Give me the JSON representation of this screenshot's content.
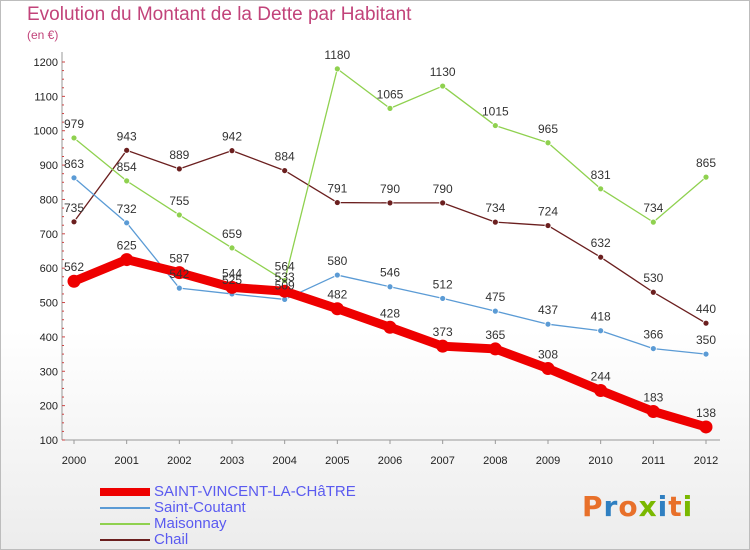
{
  "title": "Evolution du Montant de la Dette par Habitant",
  "subtitle": "(en €)",
  "logo": {
    "text": "Proxiti",
    "colors": [
      "#e8702a",
      "#2f7fc1",
      "#e8702a",
      "#7ab800",
      "#2f7fc1",
      "#e8702a",
      "#7ab800"
    ]
  },
  "chart_data": {
    "type": "line",
    "title": "Evolution du Montant de la Dette par Habitant",
    "ylabel": "(en €)",
    "xlabel": "",
    "x": [
      "2000",
      "2001",
      "2002",
      "2003",
      "2004",
      "2005",
      "2006",
      "2007",
      "2008",
      "2009",
      "2010",
      "2011",
      "2012"
    ],
    "ylim": [
      100,
      1200
    ],
    "yticks": [
      100,
      200,
      300,
      400,
      500,
      600,
      700,
      800,
      900,
      1000,
      1100,
      1200
    ],
    "grid": false,
    "legend_position": "bottom-left",
    "series": [
      {
        "name": "SAINT-VINCENT-LA-CHâTRE",
        "color": "#ee0000",
        "values": [
          562,
          625,
          587,
          544,
          533,
          482,
          428,
          373,
          365,
          308,
          244,
          183,
          138
        ]
      },
      {
        "name": "Saint-Coutant",
        "color": "#5b9bd5",
        "values": [
          863,
          732,
          542,
          525,
          509,
          580,
          546,
          512,
          475,
          437,
          418,
          366,
          350
        ]
      },
      {
        "name": "Maisonnay",
        "color": "#8fd14f",
        "values": [
          979,
          854,
          755,
          659,
          564,
          1180,
          1065,
          1130,
          1015,
          965,
          831,
          734,
          865
        ]
      },
      {
        "name": "Chail",
        "color": "#6b1f1f",
        "values": [
          735,
          943,
          889,
          942,
          884,
          791,
          790,
          790,
          734,
          724,
          632,
          530,
          440
        ]
      }
    ]
  }
}
